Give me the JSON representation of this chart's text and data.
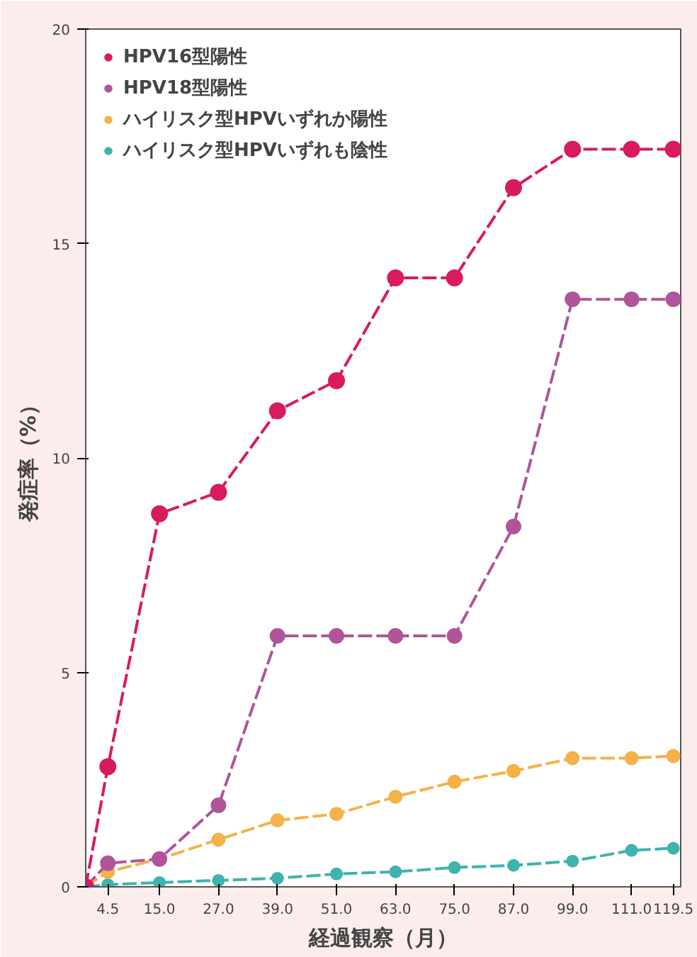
{
  "chart_data": {
    "type": "line",
    "xlabel": "経過観察（月）",
    "ylabel": "発症率（%）",
    "x": [
      0,
      4.5,
      15,
      27,
      39,
      51,
      63,
      75,
      87,
      99,
      111,
      119.5
    ],
    "series": [
      {
        "name": "HPV16型陽性",
        "color": "#d81b60",
        "values": [
          0,
          2.8,
          8.7,
          9.2,
          11.1,
          11.8,
          14.2,
          14.2,
          16.3,
          17.2,
          17.2,
          17.2
        ]
      },
      {
        "name": "HPV18型陽性",
        "color": "#b0559a",
        "values": [
          0,
          0.55,
          0.65,
          1.9,
          5.85,
          5.85,
          5.85,
          5.85,
          8.4,
          13.7,
          13.7,
          13.7
        ]
      },
      {
        "name": "ハイリスク型HPVいずれか陽性",
        "color": "#f5b14a",
        "values": [
          0,
          0.35,
          0.65,
          1.1,
          1.55,
          1.7,
          2.1,
          2.45,
          2.7,
          3.0,
          3.0,
          3.05
        ]
      },
      {
        "name": "ハイリスク型HPVいずれも陰性",
        "color": "#3fb3ad",
        "values": [
          0,
          0.05,
          0.1,
          0.15,
          0.2,
          0.3,
          0.35,
          0.45,
          0.5,
          0.6,
          0.85,
          0.9
        ]
      }
    ],
    "xlim": [
      0,
      121
    ],
    "xticks": [
      {
        "value": 4.5,
        "label": "4.5"
      },
      {
        "value": 15,
        "label": "15.0"
      },
      {
        "value": 27,
        "label": "27.0"
      },
      {
        "value": 39,
        "label": "39.0"
      },
      {
        "value": 51,
        "label": "51.0"
      },
      {
        "value": 63,
        "label": "63.0"
      },
      {
        "value": 75,
        "label": "75.0"
      },
      {
        "value": 87,
        "label": "87.0"
      },
      {
        "value": 99,
        "label": "99.0"
      },
      {
        "value": 111,
        "label": "111.0"
      },
      {
        "value": 119.5,
        "label": "119.5"
      }
    ],
    "ylim": [
      0,
      20
    ],
    "yticks": [
      0,
      5,
      10,
      15,
      20
    ],
    "grid": false,
    "legend": "top left",
    "marker": "circle",
    "line_style": "dashed"
  }
}
